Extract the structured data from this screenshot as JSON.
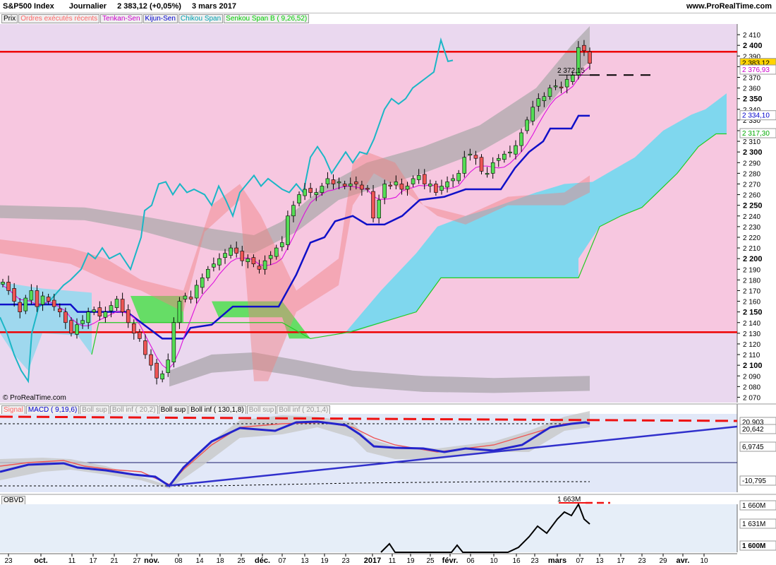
{
  "header": {
    "symbol": "S&P500 Index",
    "period": "Journalier",
    "price": "2 383,12 (+0,05%)",
    "date": "3 mars 2017",
    "site": "www.ProRealTime.com"
  },
  "price_legend": [
    {
      "label": "Prix",
      "color": "#000000"
    },
    {
      "label": "Ordres exécutés récents",
      "color": "#ff6666"
    },
    {
      "label": "Tenkan-Sen",
      "color": "#cc00cc"
    },
    {
      "label": "Kijun-Sen",
      "color": "#0000cc"
    },
    {
      "label": "Chikou Span",
      "color": "#00a0b0"
    },
    {
      "label": "Senkou Span B ( 9,26,52)",
      "color": "#00cc00"
    }
  ],
  "macd_legend": [
    {
      "label": "Signal",
      "color": "#ff6666"
    },
    {
      "label": "MACD ( 9,19,6)",
      "color": "#0000cc"
    },
    {
      "label": "Boll sup",
      "color": "#999999"
    },
    {
      "label": "Boll inf ( 20,2)",
      "color": "#999999"
    },
    {
      "label": "Boll sup",
      "color": "#000000"
    },
    {
      "label": "Boll inf ( 130,1,8)",
      "color": "#000000"
    },
    {
      "label": "Boll sup",
      "color": "#999999"
    },
    {
      "label": "Boll inf ( 20,1,4)",
      "color": "#999999"
    }
  ],
  "obv_legend": [
    {
      "label": "OBVD",
      "color": "#000000"
    }
  ],
  "copyright": "© ProRealTime.com",
  "annotations": {
    "high_label": "2 372,15",
    "obv_label": "1 663M"
  },
  "price_tags": [
    {
      "value": "2 383,12",
      "y": 2383.12,
      "bg": "#ffd400",
      "color": "#000000"
    },
    {
      "value": "2 376,93",
      "y": 2376.93,
      "bg": "#ffffff",
      "color": "#cc00cc"
    },
    {
      "value": "2 334,10",
      "y": 2334.1,
      "bg": "#ffffff",
      "color": "#0000cc"
    },
    {
      "value": "2 317,30",
      "y": 2317.3,
      "bg": "#ffffff",
      "color": "#00aa00"
    }
  ],
  "macd_tags": [
    {
      "value": "20,903"
    },
    {
      "value": "20,642"
    },
    {
      "value": "6,9745"
    },
    {
      "value": "-10,795"
    }
  ],
  "obv_tags": [
    {
      "value": "1 660M"
    },
    {
      "value": "1 631M"
    },
    {
      "value": "1 600M"
    }
  ],
  "chart_data": [
    {
      "type": "candlestick",
      "title": "S&P500 Index",
      "ylim": [
        2065,
        2420
      ],
      "y_ticks": [
        "2 410",
        "2 400",
        "2 390",
        "2 380",
        "2 370",
        "2 360",
        "2 350",
        "2 340",
        "2 330",
        "2 320",
        "2 310",
        "2 300",
        "2 290",
        "2 280",
        "2 270",
        "2 260",
        "2 250",
        "2 240",
        "2 230",
        "2 220",
        "2 210",
        "2 200",
        "2 190",
        "2 180",
        "2 170",
        "2 160",
        "2 150",
        "2 140",
        "2 130",
        "2 120",
        "2 110",
        "2 100",
        "2 090",
        "2 080",
        "2 070"
      ],
      "y_tick_values": [
        2410,
        2400,
        2390,
        2380,
        2370,
        2360,
        2350,
        2340,
        2330,
        2320,
        2310,
        2300,
        2290,
        2280,
        2270,
        2260,
        2250,
        2240,
        2230,
        2220,
        2210,
        2200,
        2190,
        2180,
        2170,
        2160,
        2150,
        2140,
        2130,
        2120,
        2110,
        2100,
        2090,
        2080,
        2070
      ],
      "x_ticks": [
        "23",
        "oct.",
        "11",
        "17",
        "21",
        "27",
        "nov.",
        "08",
        "14",
        "18",
        "25",
        "déc.",
        "07",
        "13",
        "19",
        "23",
        "2017",
        "11",
        "19",
        "25",
        "févr.",
        "06",
        "10",
        "16",
        "23",
        "mars",
        "07",
        "13",
        "17",
        "23",
        "29",
        "avr.",
        "10"
      ],
      "horizontal_lines": [
        2394,
        2131
      ],
      "close_series": [
        2178,
        2170,
        2160,
        2150,
        2163,
        2170,
        2155,
        2165,
        2160,
        2155,
        2150,
        2140,
        2130,
        2138,
        2142,
        2150,
        2152,
        2146,
        2150,
        2156,
        2162,
        2150,
        2140,
        2130,
        2125,
        2110,
        2100,
        2088,
        2092,
        2105,
        2140,
        2160,
        2165,
        2162,
        2175,
        2182,
        2190,
        2195,
        2200,
        2205,
        2210,
        2205,
        2198,
        2200,
        2195,
        2190,
        2198,
        2203,
        2210,
        2215,
        2240,
        2250,
        2260,
        2265,
        2262,
        2262,
        2268,
        2275,
        2270,
        2272,
        2268,
        2270,
        2270,
        2265,
        2265,
        2238,
        2255,
        2270,
        2268,
        2272,
        2265,
        2268,
        2275,
        2278,
        2270,
        2270,
        2262,
        2268,
        2272,
        2275,
        2280,
        2295,
        2298,
        2294,
        2282,
        2280,
        2290,
        2294,
        2298,
        2300,
        2306,
        2318,
        2330,
        2342,
        2350,
        2352,
        2360,
        2362,
        2360,
        2368,
        2372,
        2398,
        2395,
        2383.12
      ]
    },
    {
      "type": "line",
      "title": "MACD",
      "series_names": [
        "Signal",
        "MACD ( 9,19,6)"
      ],
      "ylim": [
        -14,
        24
      ]
    },
    {
      "type": "line",
      "title": "OBVD",
      "series_names": [
        "OBVD"
      ],
      "ylim": [
        1595,
        1670
      ]
    }
  ]
}
